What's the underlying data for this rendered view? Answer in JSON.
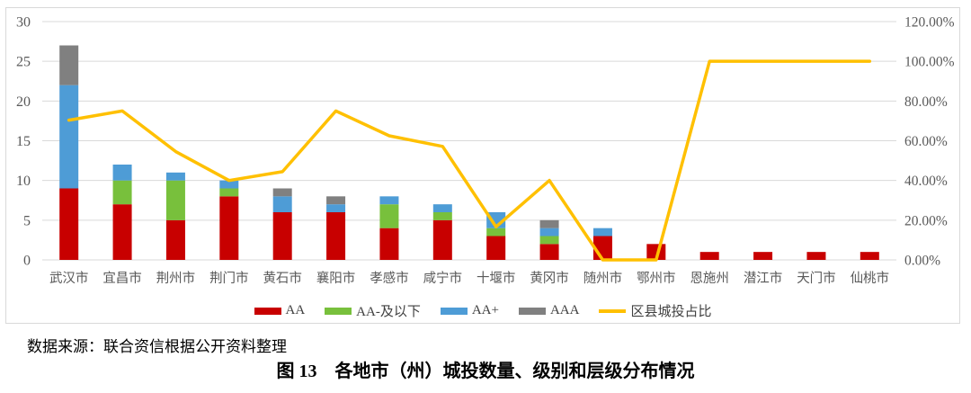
{
  "figure": {
    "source_note": "数据来源：联合资信根据公开资料整理",
    "caption": "图 13　各地市（州）城投数量、级别和层级分布情况"
  },
  "colors": {
    "gridline": "#D9D9D9",
    "frame_border": "#D9D9D9",
    "axis_text": "#595959",
    "legend_text": "#404040"
  },
  "chart_data": {
    "type": "combo",
    "subtype": "stacked-column-with-line-on-secondary-axis",
    "title": "",
    "grid": true,
    "stacked": true,
    "legend_position": "bottom",
    "categories": [
      "武汉市",
      "宜昌市",
      "荆州市",
      "荆门市",
      "黄石市",
      "襄阳市",
      "孝感市",
      "咸宁市",
      "十堰市",
      "黄冈市",
      "随州市",
      "鄂州市",
      "恩施州",
      "潜江市",
      "天门市",
      "仙桃市"
    ],
    "series": [
      {
        "key": "aa",
        "name": "AA",
        "color": "#C80000",
        "values": [
          9,
          7,
          5,
          8,
          6,
          6,
          4,
          5,
          3,
          2,
          3,
          2,
          1,
          1,
          1,
          1
        ]
      },
      {
        "key": "aa-minus-below",
        "name": "AA-及以下",
        "color": "#78C03C",
        "values": [
          0,
          3,
          5,
          1,
          0,
          0,
          3,
          1,
          1,
          1,
          0,
          0,
          0,
          0,
          0,
          0
        ]
      },
      {
        "key": "aa-plus",
        "name": "AA+",
        "color": "#4E9CD6",
        "values": [
          13,
          2,
          1,
          1,
          2,
          1,
          1,
          1,
          2,
          1,
          1,
          0,
          0,
          0,
          0,
          0
        ]
      },
      {
        "key": "aaa",
        "name": "AAA",
        "color": "#808080",
        "values": [
          5,
          0,
          0,
          0,
          1,
          1,
          0,
          0,
          0,
          1,
          0,
          0,
          0,
          0,
          0,
          0
        ]
      }
    ],
    "bar_totals": [
      27,
      12,
      11,
      10,
      9,
      8,
      8,
      7,
      6,
      5,
      4,
      2,
      1,
      1,
      1,
      1
    ],
    "line_series": {
      "name": "区县城投占比",
      "color": "#FFC000",
      "axis": "right",
      "values_percent": [
        70.37,
        75.0,
        54.55,
        40.0,
        44.44,
        75.0,
        62.5,
        57.14,
        16.67,
        40.0,
        0.0,
        0.0,
        100.0,
        100.0,
        100.0,
        100.0
      ]
    },
    "left_axis": {
      "min": 0,
      "max": 30,
      "ticks": [
        0,
        5,
        10,
        15,
        20,
        25,
        30
      ]
    },
    "right_axis": {
      "min_percent": 0,
      "max_percent": 120,
      "tick_labels": [
        "0.00%",
        "20.00%",
        "40.00%",
        "60.00%",
        "80.00%",
        "100.00%",
        "120.00%"
      ]
    },
    "legend": [
      {
        "label": "AA",
        "color": "#C80000",
        "type": "bar"
      },
      {
        "label": "AA-及以下",
        "color": "#78C03C",
        "type": "bar"
      },
      {
        "label": "AA+",
        "color": "#4E9CD6",
        "type": "bar"
      },
      {
        "label": "AAA",
        "color": "#808080",
        "type": "bar"
      },
      {
        "label": "区县城投占比",
        "color": "#FFC000",
        "type": "line"
      }
    ]
  }
}
